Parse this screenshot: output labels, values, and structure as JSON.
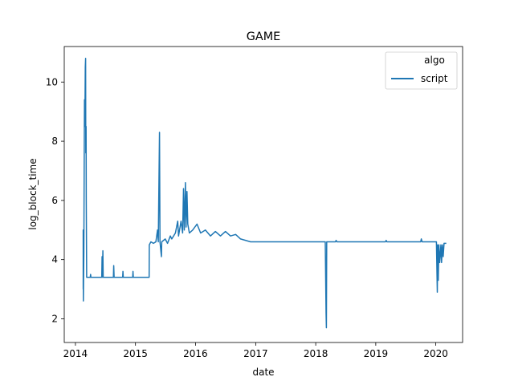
{
  "chart_data": {
    "type": "line",
    "title": "GAME",
    "xlabel": "date",
    "ylabel": "log_block_time",
    "xlim": [
      "2013-10-25",
      "2020-06-12"
    ],
    "ylim": [
      1.2,
      11.2
    ],
    "x_ticks": [
      "2014",
      "2015",
      "2016",
      "2017",
      "2018",
      "2019",
      "2020"
    ],
    "y_ticks": [
      2,
      4,
      6,
      8,
      10
    ],
    "grid": false,
    "legend": {
      "title": "algo",
      "position": "top-right"
    },
    "colors": {
      "script": "#1f77b4"
    },
    "series": [
      {
        "name": "script",
        "points": [
          [
            "2014-02-17",
            3.0
          ],
          [
            "2014-02-17",
            5.0
          ],
          [
            "2014-02-18",
            2.6
          ],
          [
            "2014-02-21",
            4.2
          ],
          [
            "2014-02-23",
            7.0
          ],
          [
            "2014-02-25",
            9.4
          ],
          [
            "2014-02-27",
            8.5
          ],
          [
            "2014-02-28",
            9.0
          ],
          [
            "2014-03-02",
            10.5
          ],
          [
            "2014-03-04",
            10.8
          ],
          [
            "2014-03-05",
            7.6
          ],
          [
            "2014-03-07",
            8.5
          ],
          [
            "2014-03-08",
            6.0
          ],
          [
            "2014-03-10",
            3.4
          ],
          [
            "2014-04-01",
            3.4
          ],
          [
            "2014-04-03",
            3.5
          ],
          [
            "2014-04-05",
            3.4
          ],
          [
            "2014-06-10",
            3.4
          ],
          [
            "2014-06-12",
            4.1
          ],
          [
            "2014-06-14",
            3.4
          ],
          [
            "2014-06-17",
            4.3
          ],
          [
            "2014-06-19",
            3.4
          ],
          [
            "2014-08-20",
            3.4
          ],
          [
            "2014-08-22",
            3.8
          ],
          [
            "2014-08-24",
            3.4
          ],
          [
            "2014-10-15",
            3.4
          ],
          [
            "2014-10-17",
            3.6
          ],
          [
            "2014-10-19",
            3.4
          ],
          [
            "2014-12-15",
            3.4
          ],
          [
            "2014-12-17",
            3.6
          ],
          [
            "2014-12-19",
            3.4
          ],
          [
            "2015-03-25",
            3.4
          ],
          [
            "2015-03-26",
            4.5
          ],
          [
            "2015-04-05",
            4.6
          ],
          [
            "2015-04-20",
            4.55
          ],
          [
            "2015-05-05",
            4.6
          ],
          [
            "2015-05-15",
            5.0
          ],
          [
            "2015-05-20",
            4.6
          ],
          [
            "2015-05-27",
            8.3
          ],
          [
            "2015-05-30",
            4.6
          ],
          [
            "2015-06-08",
            4.1
          ],
          [
            "2015-06-10",
            4.6
          ],
          [
            "2015-07-01",
            4.7
          ],
          [
            "2015-07-15",
            4.55
          ],
          [
            "2015-08-01",
            4.8
          ],
          [
            "2015-08-10",
            4.7
          ],
          [
            "2015-09-01",
            4.9
          ],
          [
            "2015-09-15",
            5.3
          ],
          [
            "2015-09-20",
            4.8
          ],
          [
            "2015-10-05",
            5.3
          ],
          [
            "2015-10-15",
            4.9
          ],
          [
            "2015-10-20",
            6.4
          ],
          [
            "2015-10-25",
            5.0
          ],
          [
            "2015-11-01",
            6.6
          ],
          [
            "2015-11-05",
            5.1
          ],
          [
            "2015-11-10",
            6.3
          ],
          [
            "2015-11-15",
            5.2
          ],
          [
            "2015-11-25",
            4.9
          ],
          [
            "2015-12-15",
            5.0
          ],
          [
            "2016-01-10",
            5.2
          ],
          [
            "2016-02-01",
            4.9
          ],
          [
            "2016-03-01",
            5.0
          ],
          [
            "2016-04-01",
            4.8
          ],
          [
            "2016-05-01",
            4.95
          ],
          [
            "2016-06-01",
            4.8
          ],
          [
            "2016-07-01",
            4.95
          ],
          [
            "2016-08-01",
            4.8
          ],
          [
            "2016-09-01",
            4.85
          ],
          [
            "2016-10-01",
            4.7
          ],
          [
            "2016-12-01",
            4.6
          ],
          [
            "2017-06-01",
            4.6
          ],
          [
            "2017-12-01",
            4.6
          ],
          [
            "2018-02-28",
            4.6
          ],
          [
            "2018-03-05",
            2.2
          ],
          [
            "2018-03-07",
            1.7
          ],
          [
            "2018-03-09",
            4.6
          ],
          [
            "2018-05-01",
            4.6
          ],
          [
            "2018-05-05",
            4.65
          ],
          [
            "2018-05-10",
            4.6
          ],
          [
            "2019-03-01",
            4.6
          ],
          [
            "2019-03-05",
            4.65
          ],
          [
            "2019-03-10",
            4.6
          ],
          [
            "2019-10-01",
            4.6
          ],
          [
            "2019-10-05",
            4.7
          ],
          [
            "2019-10-10",
            4.6
          ],
          [
            "2020-01-05",
            4.6
          ],
          [
            "2020-01-10",
            2.9
          ],
          [
            "2020-01-12",
            4.5
          ],
          [
            "2020-01-16",
            3.3
          ],
          [
            "2020-01-20",
            4.5
          ],
          [
            "2020-01-25",
            3.9
          ],
          [
            "2020-02-01",
            4.5
          ],
          [
            "2020-02-05",
            3.9
          ],
          [
            "2020-02-10",
            4.5
          ],
          [
            "2020-02-15",
            4.1
          ],
          [
            "2020-02-20",
            4.55
          ],
          [
            "2020-03-05",
            4.55
          ]
        ]
      }
    ]
  }
}
